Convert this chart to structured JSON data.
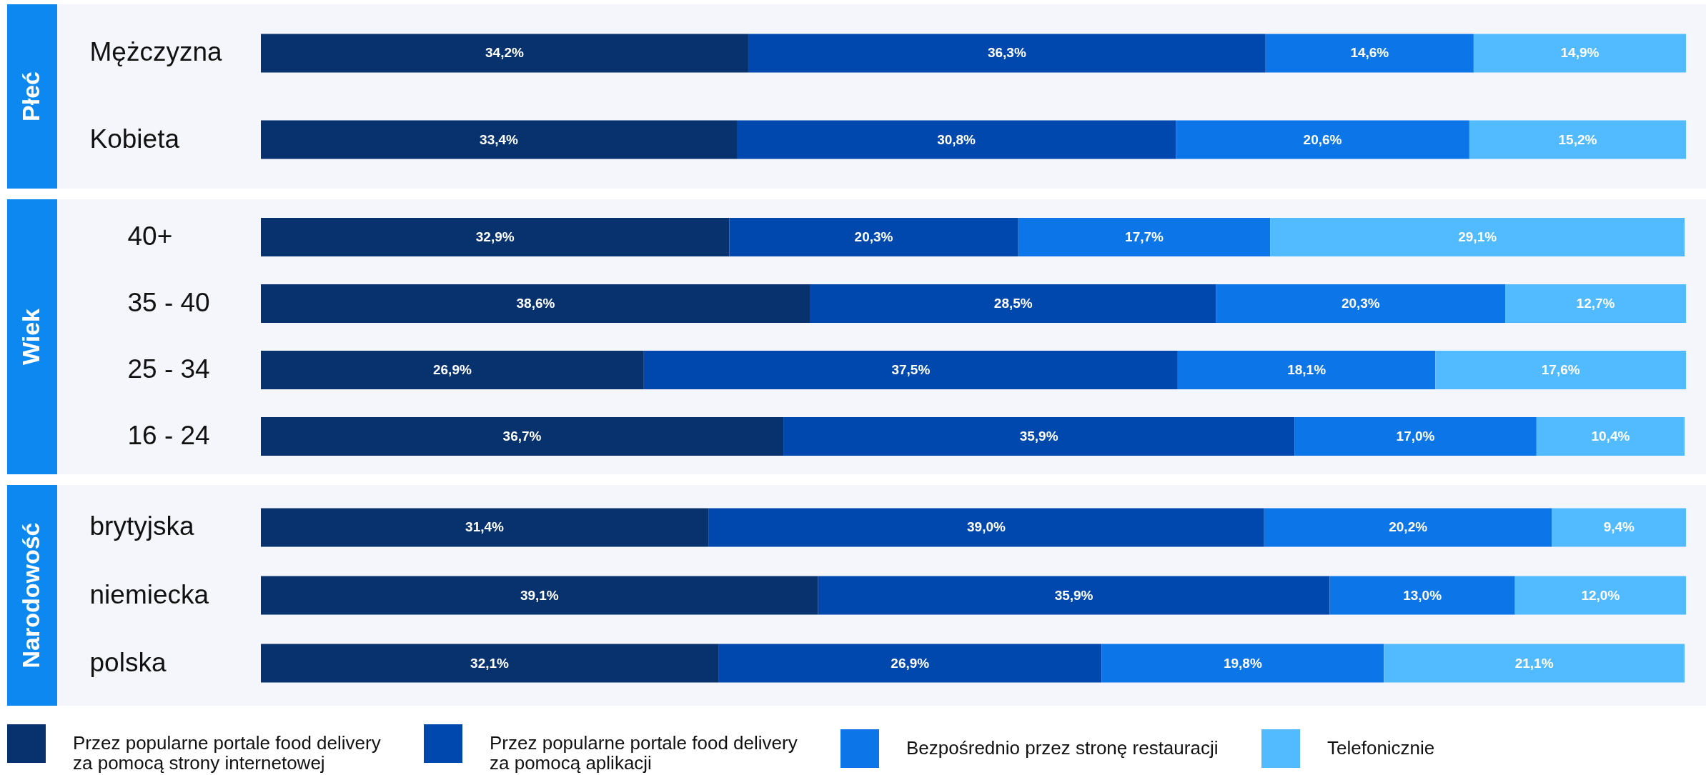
{
  "chart_data": [
    {
      "type": "bar",
      "orientation": "horizontal",
      "stacked": true,
      "ylabel": "Płeć",
      "categories": [
        "Mężczyzna",
        "Kobieta"
      ],
      "tick_labels": "y",
      "legend": "bottom",
      "series": [
        {
          "name": "Przez popularne portale food delivery za pomocą strony internetowej",
          "color": "#08326e",
          "values": [
            34.2,
            33.4
          ],
          "value_labels": [
            "34,2%",
            "33,4%"
          ]
        },
        {
          "name": "Przez popularne portale food delivery za pomocą aplikacji",
          "color": "#0047ae",
          "values": [
            36.3,
            30.8
          ],
          "value_labels": [
            "36,3%",
            "30,8%"
          ]
        },
        {
          "name": "Bezpośrednio przez stronę restauracji",
          "color": "#0c76e8",
          "values": [
            14.6,
            20.6
          ],
          "value_labels": [
            "14,6%",
            "20,6%"
          ]
        },
        {
          "name": "Telefonicznie",
          "color": "#52bbff",
          "values": [
            14.9,
            15.2
          ],
          "value_labels": [
            "14,9%",
            "15,2%"
          ]
        }
      ]
    },
    {
      "type": "bar",
      "orientation": "horizontal",
      "stacked": true,
      "ylabel": "Wiek",
      "categories": [
        "40+",
        "35 - 40",
        "25 - 34",
        "16 - 24"
      ],
      "tick_labels": "y",
      "legend": "bottom",
      "series": [
        {
          "name": "Przez popularne portale food delivery za pomocą strony internetowej",
          "color": "#08326e",
          "values": [
            32.9,
            38.6,
            26.9,
            36.7
          ],
          "value_labels": [
            "32,9%",
            "38,6%",
            "26,9%",
            "36,7%"
          ]
        },
        {
          "name": "Przez popularne portale food delivery za pomocą aplikacji",
          "color": "#0047ae",
          "values": [
            20.3,
            28.5,
            37.5,
            35.9
          ],
          "value_labels": [
            "20,3%",
            "28,5%",
            "37,5%",
            "35,9%"
          ]
        },
        {
          "name": "Bezpośrednio przez stronę restauracji",
          "color": "#0c76e8",
          "values": [
            17.7,
            20.3,
            18.1,
            17.0
          ],
          "value_labels": [
            "17,7%",
            "20,3%",
            "18,1%",
            "17,0%"
          ]
        },
        {
          "name": "Telefonicznie",
          "color": "#52bbff",
          "values": [
            29.1,
            12.7,
            17.6,
            10.4
          ],
          "value_labels": [
            "29,1%",
            "12,7%",
            "17,6%",
            "10,4%"
          ]
        }
      ]
    },
    {
      "type": "bar",
      "orientation": "horizontal",
      "stacked": true,
      "ylabel": "Narodowość",
      "categories": [
        "brytyjska",
        "niemiecka",
        "polska"
      ],
      "tick_labels": "y",
      "legend": "bottom",
      "series": [
        {
          "name": "Przez popularne portale food delivery za pomocą strony internetowej",
          "color": "#08326e",
          "values": [
            31.4,
            39.1,
            32.1
          ],
          "value_labels": [
            "31,4%",
            "39,1%",
            "32,1%"
          ]
        },
        {
          "name": "Przez popularne portale food delivery za pomocą aplikacji",
          "color": "#0047ae",
          "values": [
            39.0,
            35.9,
            26.9
          ],
          "value_labels": [
            "39,0%",
            "35,9%",
            "26,9%"
          ]
        },
        {
          "name": "Bezpośrednio przez stronę restauracji",
          "color": "#0c76e8",
          "values": [
            20.2,
            13.0,
            19.8
          ],
          "value_labels": [
            "20,2%",
            "13,0%",
            "19,8%"
          ]
        },
        {
          "name": "Telefonicznie",
          "color": "#52bbff",
          "values": [
            9.4,
            12.0,
            21.1
          ],
          "value_labels": [
            "9,4%",
            "12,0%",
            "21,1%"
          ]
        }
      ]
    }
  ]
}
